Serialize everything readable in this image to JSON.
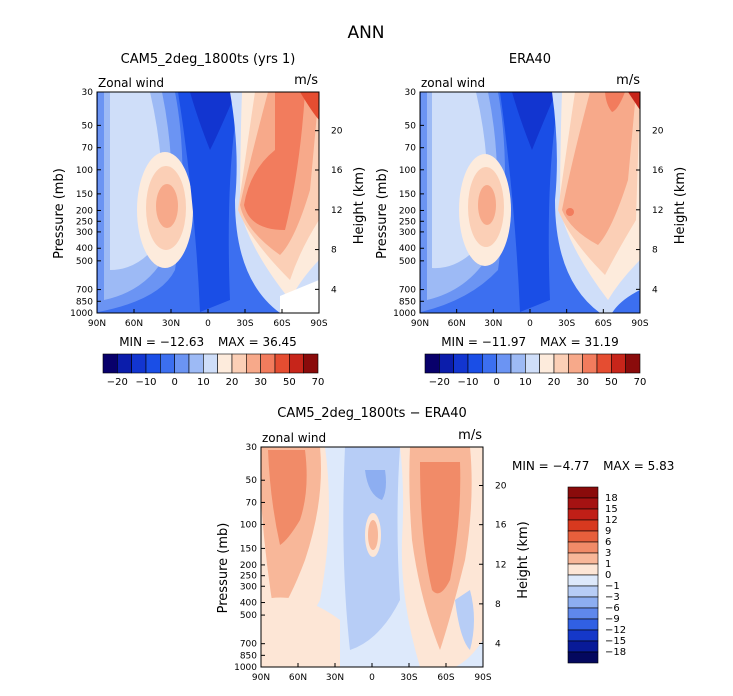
{
  "page_title": "ANN",
  "chart_data": [
    {
      "type": "contour",
      "id": "model",
      "title": "CAM5_2deg_1800ts (yrs 1)",
      "variable": "Zonal wind",
      "units": "m/s",
      "ylabel": "Pressure (mb)",
      "ylabel_right": "Height (km)",
      "x_ticks": [
        "90N",
        "60N",
        "30N",
        "0",
        "30S",
        "60S",
        "90S"
      ],
      "y_ticks": [
        "30",
        "50",
        "70",
        "100",
        "150",
        "200",
        "250",
        "300",
        "400",
        "500",
        "700",
        "850",
        "1000"
      ],
      "height_ticks": [
        "20",
        "16",
        "12",
        "8",
        "4"
      ],
      "min_label": "MIN = −12.63",
      "max_label": "MAX =   36.45",
      "min": -12.63,
      "max": 36.45,
      "colorbar_labels": [
        "−20",
        "−10",
        "0",
        "10",
        "20",
        "30",
        "50",
        "70"
      ],
      "levels": [
        -20,
        -15,
        -10,
        -5,
        0,
        5,
        10,
        15,
        20,
        25,
        30,
        40,
        50,
        60,
        70
      ]
    },
    {
      "type": "contour",
      "id": "obs",
      "title": "ERA40",
      "variable": "zonal wind",
      "units": "m/s",
      "ylabel": "Pressure (mb)",
      "ylabel_right": "Height (km)",
      "x_ticks": [
        "90N",
        "60N",
        "30N",
        "0",
        "30S",
        "60S",
        "90S"
      ],
      "y_ticks": [
        "30",
        "50",
        "70",
        "100",
        "150",
        "200",
        "250",
        "300",
        "400",
        "500",
        "700",
        "850",
        "1000"
      ],
      "height_ticks": [
        "20",
        "16",
        "12",
        "8",
        "4"
      ],
      "min_label": "MIN = −11.97",
      "max_label": "MAX =   31.19",
      "min": -11.97,
      "max": 31.19,
      "colorbar_labels": [
        "−20",
        "−10",
        "0",
        "10",
        "20",
        "30",
        "50",
        "70"
      ],
      "levels": [
        -20,
        -15,
        -10,
        -5,
        0,
        5,
        10,
        15,
        20,
        25,
        30,
        40,
        50,
        60,
        70
      ]
    },
    {
      "type": "contour",
      "id": "diff",
      "title": "CAM5_2deg_1800ts − ERA40",
      "variable": "zonal wind",
      "units": "m/s",
      "ylabel": "Pressure (mb)",
      "ylabel_right": "Height (km)",
      "x_ticks": [
        "90N",
        "60N",
        "30N",
        "0",
        "30S",
        "60S",
        "90S"
      ],
      "y_ticks": [
        "30",
        "50",
        "70",
        "100",
        "150",
        "200",
        "250",
        "300",
        "400",
        "500",
        "700",
        "850",
        "1000"
      ],
      "height_ticks": [
        "20",
        "16",
        "12",
        "8",
        "4"
      ],
      "min_label": "MIN =   −4.77",
      "max_label": "MAX =    5.83",
      "min": -4.77,
      "max": 5.83,
      "colorbar_labels": [
        "18",
        "15",
        "12",
        "9",
        "6",
        "3",
        "1",
        "0",
        "−1",
        "−3",
        "−6",
        "−9",
        "−12",
        "−15",
        "−18"
      ],
      "levels": [
        -18,
        -15,
        -12,
        -9,
        -6,
        -3,
        -1,
        0,
        1,
        3,
        6,
        9,
        12,
        15,
        18
      ]
    }
  ],
  "colors": {
    "sequential": [
      "#08006b",
      "#0b1dab",
      "#1235d0",
      "#1a4ee6",
      "#3c6ff0",
      "#6b94f3",
      "#9dbaf5",
      "#cfdef9",
      "#fdebdc",
      "#fbcfb6",
      "#f7a98a",
      "#f27c5d",
      "#e54d31",
      "#c7251a",
      "#8a0b0b"
    ],
    "diverging": [
      "#8a0b0b",
      "#a51212",
      "#c01f17",
      "#d8391f",
      "#e75f3c",
      "#f18b68",
      "#f8b799",
      "#fde6d6",
      "#dde9fb",
      "#b7cdf6",
      "#8daef1",
      "#5f88ec",
      "#3160e3",
      "#1538c9",
      "#081a98",
      "#04085e"
    ]
  }
}
